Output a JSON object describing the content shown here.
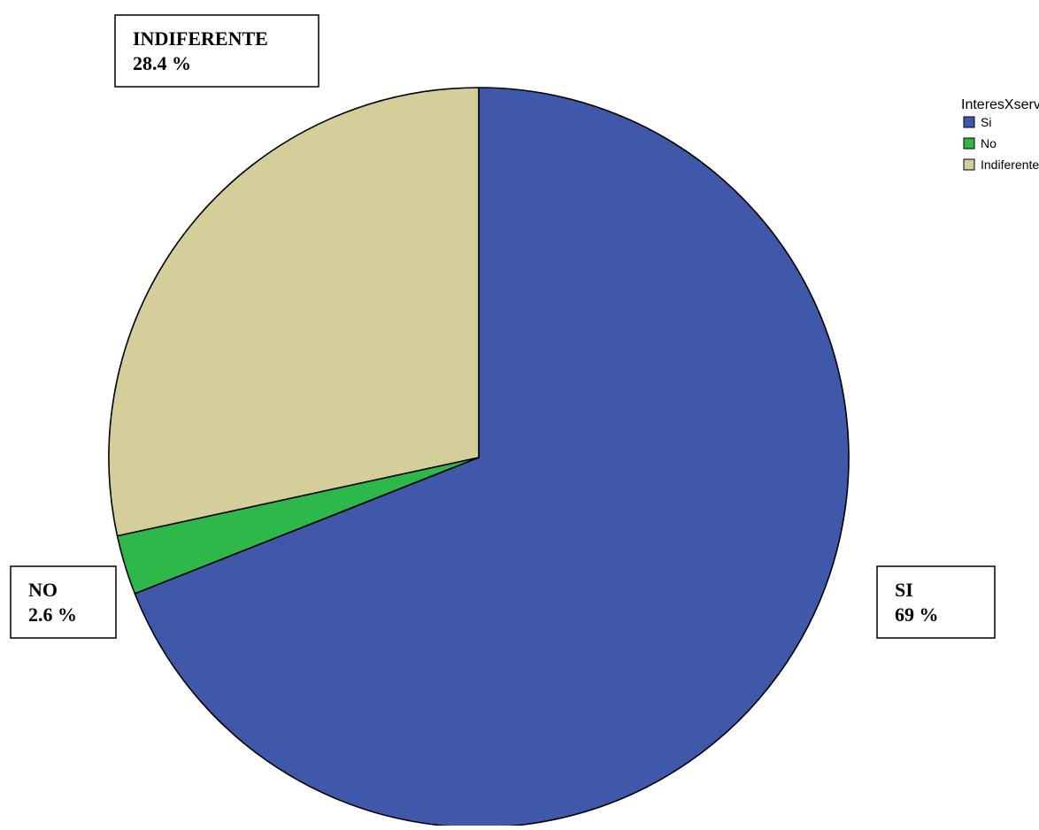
{
  "chart_data": {
    "type": "pie",
    "legend_title": "InteresXservicio",
    "legend_position": "top-right",
    "slices": [
      {
        "name": "Si",
        "value": 69.0,
        "color": "#3f58aa",
        "callout_label": "SI",
        "callout_value": "69 %"
      },
      {
        "name": "No",
        "value": 2.6,
        "color": "#2eb849",
        "callout_label": "NO",
        "callout_value": "2.6 %"
      },
      {
        "name": "Indiferente",
        "value": 28.4,
        "color": "#d3ce9a",
        "callout_label": "INDIFERENTE",
        "callout_value": "28.4 %"
      }
    ]
  }
}
